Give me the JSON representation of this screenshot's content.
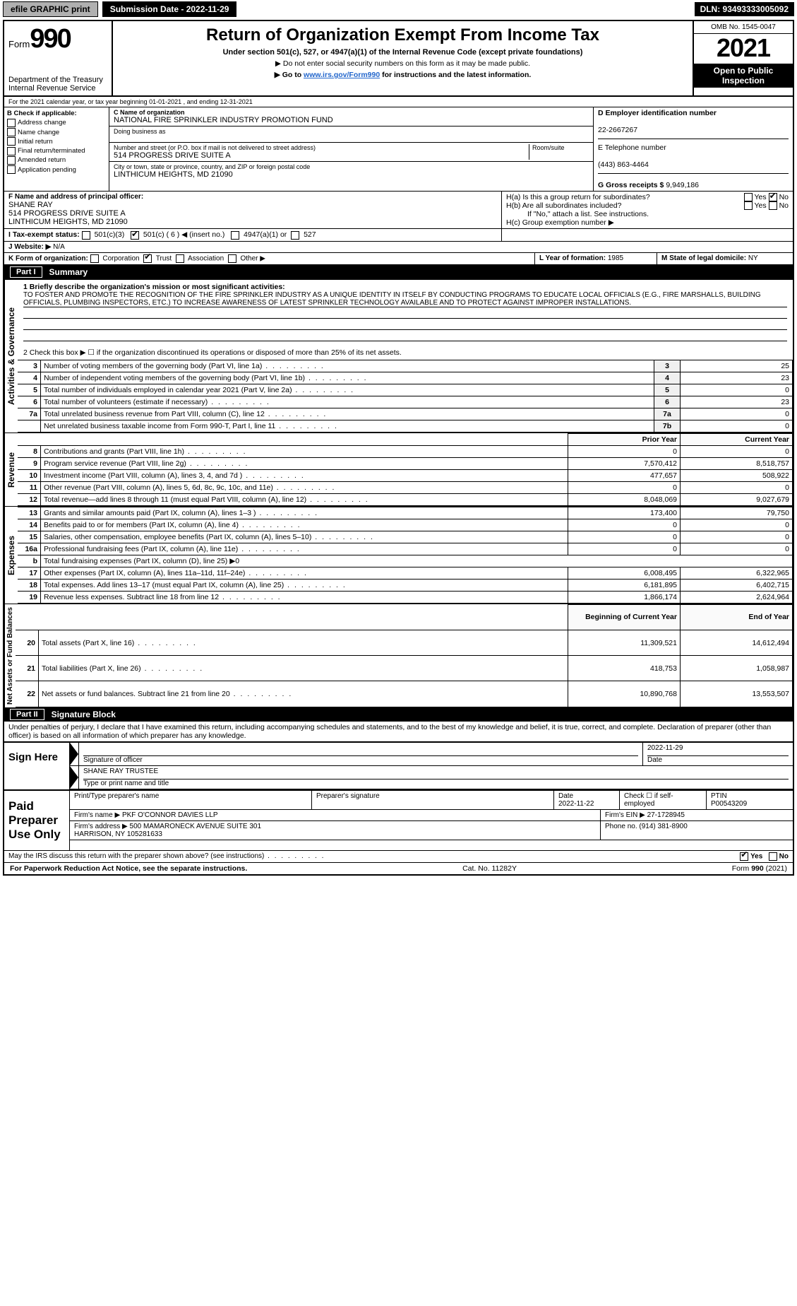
{
  "topbar": {
    "efile": "efile GRAPHIC print",
    "submission_label": "Submission Date - 2022-11-29",
    "dln": "DLN: 93493333005092"
  },
  "header": {
    "form_word": "Form",
    "form_num": "990",
    "title": "Return of Organization Exempt From Income Tax",
    "sub1": "Under section 501(c), 527, or 4947(a)(1) of the Internal Revenue Code (except private foundations)",
    "sub2": "▶ Do not enter social security numbers on this form as it may be made public.",
    "sub3_pre": "▶ Go to ",
    "sub3_link": "www.irs.gov/Form990",
    "sub3_post": " for instructions and the latest information.",
    "dept": "Department of the Treasury\nInternal Revenue Service",
    "omb": "OMB No. 1545-0047",
    "year": "2021",
    "open": "Open to Public Inspection"
  },
  "lineA": "For the 2021 calendar year, or tax year beginning 01-01-2021    , and ending 12-31-2021",
  "boxB": {
    "label": "B Check if applicable:",
    "opts": [
      "Address change",
      "Name change",
      "Initial return",
      "Final return/terminated",
      "Amended return",
      "Application pending"
    ]
  },
  "boxC": {
    "name_label": "C Name of organization",
    "name": "NATIONAL FIRE SPRINKLER INDUSTRY PROMOTION FUND",
    "dba_label": "Doing business as",
    "addr_label": "Number and street (or P.O. box if mail is not delivered to street address)",
    "room_label": "Room/suite",
    "addr": "514 PROGRESS DRIVE SUITE A",
    "city_label": "City or town, state or province, country, and ZIP or foreign postal code",
    "city": "LINTHICUM HEIGHTS, MD  21090"
  },
  "boxD": {
    "label": "D Employer identification number",
    "val": "22-2667267"
  },
  "boxE": {
    "label": "E Telephone number",
    "val": "(443) 863-4464"
  },
  "boxG": {
    "label": "G Gross receipts $",
    "val": "9,949,186"
  },
  "boxF": {
    "label": "F Name and address of principal officer:",
    "name": "SHANE RAY",
    "addr1": "514 PROGRESS DRIVE SUITE A",
    "addr2": "LINTHICUM HEIGHTS, MD  21090"
  },
  "boxH": {
    "a": "H(a)  Is this a group return for subordinates?",
    "b": "H(b)  Are all subordinates included?",
    "note": "If \"No,\" attach a list. See instructions.",
    "c": "H(c)  Group exemption number ▶",
    "yes": "Yes",
    "no": "No"
  },
  "boxI": {
    "label": "I  Tax-exempt status:",
    "opts": [
      "501(c)(3)",
      "501(c) ( 6 ) ◀ (insert no.)",
      "4947(a)(1) or",
      "527"
    ]
  },
  "boxJ": {
    "label": "J  Website: ▶",
    "val": "N/A"
  },
  "boxK": {
    "label": "K Form of organization:",
    "opts": [
      "Corporation",
      "Trust",
      "Association",
      "Other ▶"
    ]
  },
  "boxL": {
    "label": "L Year of formation:",
    "val": "1985"
  },
  "boxM": {
    "label": "M State of legal domicile:",
    "val": "NY"
  },
  "part1": {
    "hdr": "Part I",
    "title": "Summary",
    "q1_label": "1  Briefly describe the organization's mission or most significant activities:",
    "q1_text": "TO FOSTER AND PROMOTE THE RECOGNITION OF THE FIRE SPRINKLER INDUSTRY AS A UNIQUE IDENTITY IN ITSELF BY CONDUCTING PROGRAMS TO EDUCATE LOCAL OFFICIALS (E.G., FIRE MARSHALLS, BUILDING OFFICIALS, PLUMBING INSPECTORS, ETC.) TO INCREASE AWARENESS OF LATEST SPRINKLER TECHNOLOGY AVAILABLE AND TO PROTECT AGAINST IMPROPER INSTALLATIONS.",
    "q2": "2  Check this box ▶ ☐ if the organization discontinued its operations or disposed of more than 25% of its net assets.",
    "rows_single": [
      {
        "n": "3",
        "d": "Number of voting members of the governing body (Part VI, line 1a)",
        "box": "3",
        "v": "25"
      },
      {
        "n": "4",
        "d": "Number of independent voting members of the governing body (Part VI, line 1b)",
        "box": "4",
        "v": "23"
      },
      {
        "n": "5",
        "d": "Total number of individuals employed in calendar year 2021 (Part V, line 2a)",
        "box": "5",
        "v": "0"
      },
      {
        "n": "6",
        "d": "Total number of volunteers (estimate if necessary)",
        "box": "6",
        "v": "23"
      },
      {
        "n": "7a",
        "d": "Total unrelated business revenue from Part VIII, column (C), line 12",
        "box": "7a",
        "v": "0"
      },
      {
        "n": "",
        "d": "Net unrelated business taxable income from Form 990-T, Part I, line 11",
        "box": "7b",
        "v": "0"
      }
    ],
    "col_prior": "Prior Year",
    "col_current": "Current Year",
    "revenue": [
      {
        "n": "8",
        "d": "Contributions and grants (Part VIII, line 1h)",
        "p": "0",
        "c": "0"
      },
      {
        "n": "9",
        "d": "Program service revenue (Part VIII, line 2g)",
        "p": "7,570,412",
        "c": "8,518,757"
      },
      {
        "n": "10",
        "d": "Investment income (Part VIII, column (A), lines 3, 4, and 7d )",
        "p": "477,657",
        "c": "508,922"
      },
      {
        "n": "11",
        "d": "Other revenue (Part VIII, column (A), lines 5, 6d, 8c, 9c, 10c, and 11e)",
        "p": "0",
        "c": "0"
      },
      {
        "n": "12",
        "d": "Total revenue—add lines 8 through 11 (must equal Part VIII, column (A), line 12)",
        "p": "8,048,069",
        "c": "9,027,679"
      }
    ],
    "expenses": [
      {
        "n": "13",
        "d": "Grants and similar amounts paid (Part IX, column (A), lines 1–3 )",
        "p": "173,400",
        "c": "79,750"
      },
      {
        "n": "14",
        "d": "Benefits paid to or for members (Part IX, column (A), line 4)",
        "p": "0",
        "c": "0"
      },
      {
        "n": "15",
        "d": "Salaries, other compensation, employee benefits (Part IX, column (A), lines 5–10)",
        "p": "0",
        "c": "0"
      },
      {
        "n": "16a",
        "d": "Professional fundraising fees (Part IX, column (A), line 11e)",
        "p": "0",
        "c": "0"
      },
      {
        "n": "b",
        "d": "Total fundraising expenses (Part IX, column (D), line 25) ▶0",
        "p": "",
        "c": "",
        "noborder": true
      },
      {
        "n": "17",
        "d": "Other expenses (Part IX, column (A), lines 11a–11d, 11f–24e)",
        "p": "6,008,495",
        "c": "6,322,965"
      },
      {
        "n": "18",
        "d": "Total expenses. Add lines 13–17 (must equal Part IX, column (A), line 25)",
        "p": "6,181,895",
        "c": "6,402,715"
      },
      {
        "n": "19",
        "d": "Revenue less expenses. Subtract line 18 from line 12",
        "p": "1,866,174",
        "c": "2,624,964"
      }
    ],
    "col_boy": "Beginning of Current Year",
    "col_eoy": "End of Year",
    "netassets": [
      {
        "n": "20",
        "d": "Total assets (Part X, line 16)",
        "p": "11,309,521",
        "c": "14,612,494"
      },
      {
        "n": "21",
        "d": "Total liabilities (Part X, line 26)",
        "p": "418,753",
        "c": "1,058,987"
      },
      {
        "n": "22",
        "d": "Net assets or fund balances. Subtract line 21 from line 20",
        "p": "10,890,768",
        "c": "13,553,507"
      }
    ],
    "side_gov": "Activities & Governance",
    "side_rev": "Revenue",
    "side_exp": "Expenses",
    "side_net": "Net Assets or Fund Balances"
  },
  "part2": {
    "hdr": "Part II",
    "title": "Signature Block",
    "decl": "Under penalties of perjury, I declare that I have examined this return, including accompanying schedules and statements, and to the best of my knowledge and belief, it is true, correct, and complete. Declaration of preparer (other than officer) is based on all information of which preparer has any knowledge.",
    "sign_here": "Sign Here",
    "sig_officer": "Signature of officer",
    "date": "Date",
    "sig_date": "2022-11-29",
    "type_name": "Type or print name and title",
    "officer_name": "SHANE RAY TRUSTEE",
    "paid": "Paid Preparer Use Only",
    "prep_name_lbl": "Print/Type preparer's name",
    "prep_sig_lbl": "Preparer's signature",
    "prep_date_lbl": "Date",
    "prep_date": "2022-11-22",
    "check_self": "Check ☐ if self-employed",
    "ptin_lbl": "PTIN",
    "ptin": "P00543209",
    "firm_name_lbl": "Firm's name   ▶",
    "firm_name": "PKF O'CONNOR DAVIES LLP",
    "firm_ein_lbl": "Firm's EIN ▶",
    "firm_ein": "27-1728945",
    "firm_addr_lbl": "Firm's address ▶",
    "firm_addr": "500 MAMARONECK AVENUE SUITE 301\nHARRISON, NY  105281633",
    "phone_lbl": "Phone no.",
    "phone": "(914) 381-8900",
    "discuss": "May the IRS discuss this return with the preparer shown above? (see instructions)",
    "yes": "Yes",
    "no": "No"
  },
  "footer": {
    "left": "For Paperwork Reduction Act Notice, see the separate instructions.",
    "mid": "Cat. No. 11282Y",
    "right": "Form 990 (2021)"
  }
}
